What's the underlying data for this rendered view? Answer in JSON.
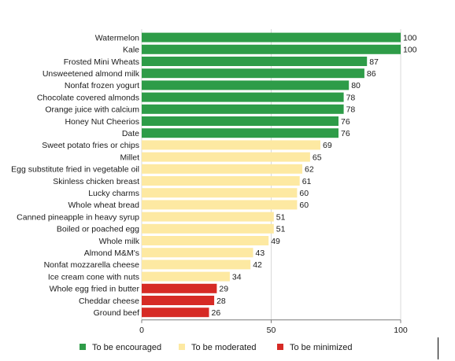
{
  "colors": {
    "encouraged": "#2e9c48",
    "moderated": "#fde9a2",
    "minimized": "#d62a25"
  },
  "legend": [
    {
      "label": "To be encouraged",
      "key": "encouraged"
    },
    {
      "label": "To be moderated",
      "key": "moderated"
    },
    {
      "label": "To be minimized",
      "key": "minimized"
    }
  ],
  "chart_data": {
    "type": "bar",
    "orientation": "horizontal",
    "title": "",
    "xlabel": "",
    "ylabel": "",
    "xlim": [
      0,
      100
    ],
    "xticks": [
      0,
      50,
      100
    ],
    "grid": true,
    "legend_position": "bottom",
    "categories": [
      "Watermelon",
      "Kale",
      "Frosted Mini Wheats",
      "Unsweetened almond milk",
      "Nonfat frozen yogurt",
      "Chocolate covered almonds",
      "Orange juice with calcium",
      "Honey Nut Cheerios",
      "Date",
      "Sweet potato fries or chips",
      "Millet",
      "Egg substitute fried in vegetable oil",
      "Skinless chicken breast",
      "Lucky charms",
      "Whole wheat bread",
      "Canned pineapple in heavy syrup",
      "Boiled or poached egg",
      "Whole milk",
      "Almond M&M's",
      "Nonfat mozzarella cheese",
      "Ice cream cone with nuts",
      "Whole egg fried in butter",
      "Cheddar cheese",
      "Ground beef"
    ],
    "values": [
      100,
      100,
      87,
      86,
      80,
      78,
      78,
      76,
      76,
      69,
      65,
      62,
      61,
      60,
      60,
      51,
      51,
      49,
      43,
      42,
      34,
      29,
      28,
      26
    ],
    "groups": [
      "encouraged",
      "encouraged",
      "encouraged",
      "encouraged",
      "encouraged",
      "encouraged",
      "encouraged",
      "encouraged",
      "encouraged",
      "moderated",
      "moderated",
      "moderated",
      "moderated",
      "moderated",
      "moderated",
      "moderated",
      "moderated",
      "moderated",
      "moderated",
      "moderated",
      "moderated",
      "minimized",
      "minimized",
      "minimized"
    ]
  }
}
